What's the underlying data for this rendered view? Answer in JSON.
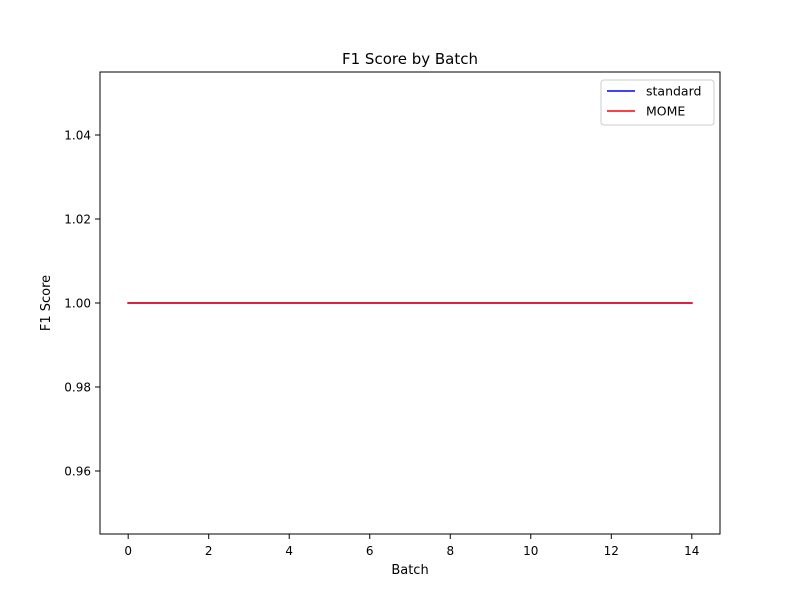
{
  "chart_data": {
    "type": "line",
    "title": "F1 Score by Batch",
    "xlabel": "Batch",
    "ylabel": "F1 Score",
    "xlim": [
      -0.7,
      14.7
    ],
    "ylim": [
      0.945,
      1.055
    ],
    "xticks": [
      0,
      2,
      4,
      6,
      8,
      10,
      12,
      14
    ],
    "yticks": [
      0.96,
      0.98,
      1.0,
      1.02,
      1.04
    ],
    "xtick_labels": [
      "0",
      "2",
      "4",
      "6",
      "8",
      "10",
      "12",
      "14"
    ],
    "ytick_labels": [
      "0.96",
      "0.98",
      "1.00",
      "1.02",
      "1.04"
    ],
    "grid": false,
    "legend_position": "top-right",
    "x": [
      0,
      1,
      2,
      3,
      4,
      5,
      6,
      7,
      8,
      9,
      10,
      11,
      12,
      13,
      14
    ],
    "series": [
      {
        "name": "standard",
        "color": "#0000ff",
        "values": [
          1,
          1,
          1,
          1,
          1,
          1,
          1,
          1,
          1,
          1,
          1,
          1,
          1,
          1,
          1
        ]
      },
      {
        "name": "MOME",
        "color": "#ff0000",
        "values": [
          1,
          1,
          1,
          1,
          1,
          1,
          1,
          1,
          1,
          1,
          1,
          1,
          1,
          1,
          1
        ]
      }
    ]
  }
}
